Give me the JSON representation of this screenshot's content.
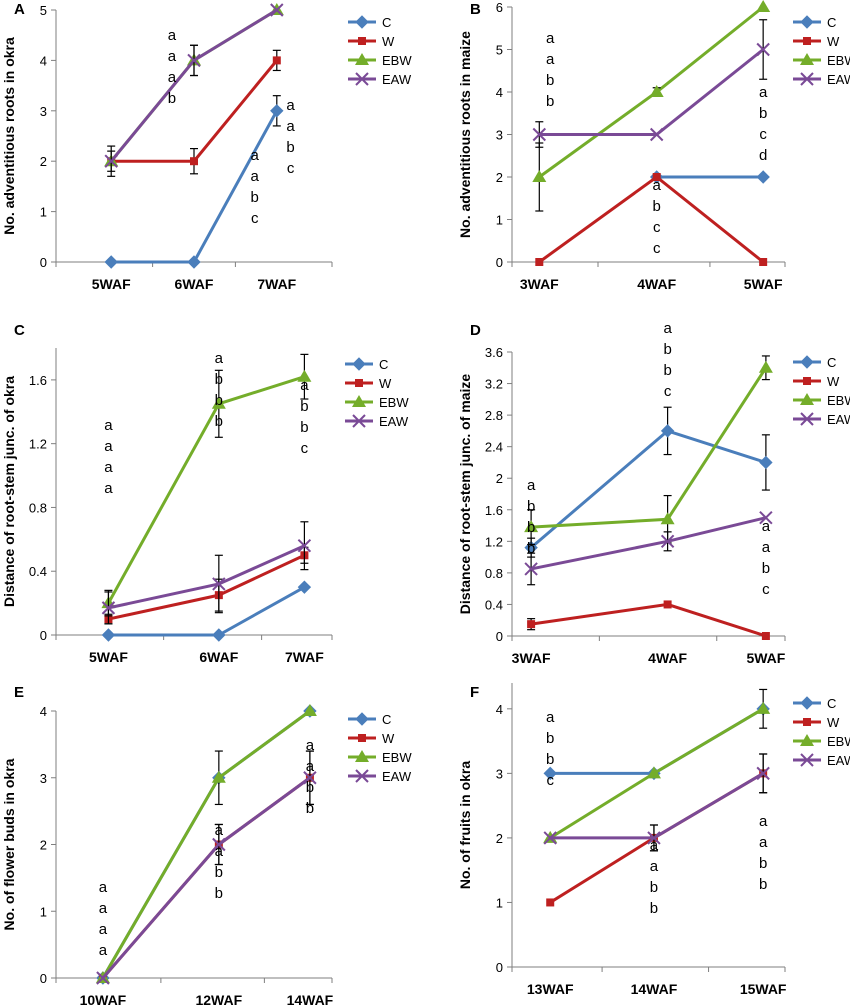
{
  "series_style": {
    "C": {
      "color": "#4a7ebb",
      "marker": "diamond"
    },
    "W": {
      "color": "#be2020",
      "marker": "square"
    },
    "EBW": {
      "color": "#74ad2a",
      "marker": "triangle"
    },
    "EAW": {
      "color": "#7a4a96",
      "marker": "x"
    }
  },
  "chart_data": [
    {
      "panel": "A",
      "type": "line",
      "ylabel": "No. adventitious roots in okra",
      "categories": [
        "5WAF",
        "6WAF",
        "7WAF"
      ],
      "ylim": [
        0,
        5
      ],
      "yticks": [
        0,
        1,
        2,
        3,
        4,
        5
      ],
      "ytick_labels": [
        "0",
        "1",
        "2",
        "3",
        "4",
        "5"
      ],
      "series": [
        {
          "name": "C",
          "values": [
            0,
            0,
            3
          ],
          "err": [
            0,
            0,
            0.3
          ]
        },
        {
          "name": "W",
          "values": [
            2,
            2,
            4
          ],
          "err": [
            0,
            0.25,
            0.2
          ]
        },
        {
          "name": "EBW",
          "values": [
            2,
            4,
            5
          ],
          "err": [
            0.3,
            0.3,
            0
          ]
        },
        {
          "name": "EAW",
          "values": [
            2,
            4,
            5
          ],
          "err": [
            0.2,
            0.3,
            0
          ]
        }
      ],
      "letters": [
        [
          "a",
          "a",
          "a",
          "b"
        ],
        [
          "a",
          "a",
          "b",
          "c"
        ],
        [
          "a",
          "a",
          "b",
          "c"
        ]
      ]
    },
    {
      "panel": "B",
      "type": "line",
      "ylabel": "No. adventitious roots in maize",
      "categories": [
        "3WAF",
        "4WAF",
        "5WAF"
      ],
      "ylim": [
        0,
        6
      ],
      "yticks": [
        0,
        1,
        2,
        3,
        4,
        5,
        6
      ],
      "ytick_labels": [
        "0",
        "1",
        "2",
        "3",
        "4",
        "5",
        "6"
      ],
      "series": [
        {
          "name": "C",
          "values": [
            null,
            2,
            2
          ],
          "err": [
            0,
            0,
            0
          ]
        },
        {
          "name": "W",
          "values": [
            0,
            2,
            0
          ],
          "err": [
            0,
            0,
            0
          ]
        },
        {
          "name": "EBW",
          "values": [
            2,
            4,
            6
          ],
          "err": [
            0.8,
            0.1,
            0
          ]
        },
        {
          "name": "EAW",
          "values": [
            3,
            3,
            5
          ],
          "err": [
            0.3,
            0,
            0.7
          ]
        }
      ],
      "letters": [
        [
          "a",
          "a",
          "b",
          "b"
        ],
        [
          "a",
          "b",
          "c",
          "c"
        ],
        [
          "a",
          "b",
          "c",
          "d"
        ]
      ]
    },
    {
      "panel": "C",
      "type": "line",
      "ylabel": "Distance of root-stem junc. of okra",
      "categories": [
        "5WAF",
        "6WAF",
        "7WAF"
      ],
      "ylim": [
        0,
        1.8
      ],
      "yticks": [
        0,
        0.4,
        0.8,
        1.2,
        1.6
      ],
      "ytick_labels": [
        "0",
        "0.4",
        "0.8",
        "1.2",
        "1.6"
      ],
      "series": [
        {
          "name": "C",
          "values": [
            0,
            0,
            0.3
          ],
          "err": [
            0,
            0,
            0
          ]
        },
        {
          "name": "W",
          "values": [
            0.1,
            0.25,
            0.5
          ],
          "err": [
            0.03,
            0.1,
            0.05
          ]
        },
        {
          "name": "EBW",
          "values": [
            0.2,
            1.45,
            1.62
          ],
          "err": [
            0.08,
            0.21,
            0.14
          ]
        },
        {
          "name": "EAW",
          "values": [
            0.17,
            0.32,
            0.56
          ],
          "err": [
            0.1,
            0.18,
            0.15
          ]
        }
      ],
      "letters": [
        [
          "a",
          "a",
          "a",
          "a"
        ],
        [
          "a",
          "b",
          "b",
          "b"
        ],
        [
          "a",
          "b",
          "b",
          "c"
        ]
      ]
    },
    {
      "panel": "D",
      "type": "line",
      "ylabel": "Distance of root-stem junc. of maize",
      "categories": [
        "3WAF",
        "4WAF",
        "5WAF"
      ],
      "ylim": [
        0,
        3.6
      ],
      "yticks": [
        0,
        0.4,
        0.8,
        1.2,
        1.6,
        2,
        2.4,
        2.8,
        3.2,
        3.6
      ],
      "ytick_labels": [
        "0",
        "0.4",
        "0.8",
        "1.2",
        "1.6",
        "2",
        "2.4",
        "2.8",
        "3.2",
        "3.6"
      ],
      "series": [
        {
          "name": "C",
          "values": [
            1.12,
            2.6,
            2.2
          ],
          "err": [
            0.12,
            0.3,
            0.35
          ]
        },
        {
          "name": "W",
          "values": [
            0.15,
            0.4,
            0
          ],
          "err": [
            0.07,
            0,
            0
          ]
        },
        {
          "name": "EBW",
          "values": [
            1.38,
            1.48,
            3.4
          ],
          "err": [
            0.22,
            0.3,
            0.15
          ]
        },
        {
          "name": "EAW",
          "values": [
            0.85,
            1.2,
            1.5
          ],
          "err": [
            0.2,
            0.12,
            0
          ]
        }
      ],
      "letters": [
        [
          "a",
          "b",
          "b",
          "b"
        ],
        [
          "a",
          "b",
          "b",
          "c"
        ],
        [
          "a",
          "a",
          "b",
          "c"
        ]
      ]
    },
    {
      "panel": "E",
      "type": "line",
      "ylabel": "No. of flower buds in okra",
      "categories": [
        "10WAF",
        "12WAF",
        "14WAF"
      ],
      "ylim": [
        0,
        4
      ],
      "yticks": [
        0,
        1,
        2,
        3,
        4
      ],
      "ytick_labels": [
        "0",
        "1",
        "2",
        "3",
        "4"
      ],
      "series": [
        {
          "name": "C",
          "values": [
            0,
            3,
            4
          ],
          "err": [
            0,
            0,
            0
          ]
        },
        {
          "name": "W",
          "values": [
            0,
            2,
            3
          ],
          "err": [
            0,
            0.3,
            0.4
          ]
        },
        {
          "name": "EBW",
          "values": [
            0,
            3,
            4
          ],
          "err": [
            0,
            0.4,
            0
          ]
        },
        {
          "name": "EAW",
          "values": [
            0,
            2,
            3
          ],
          "err": [
            0,
            0.3,
            0.4
          ]
        }
      ],
      "letters": [
        [
          "a",
          "a",
          "a",
          "a"
        ],
        [
          "a",
          "a",
          "b",
          "b"
        ],
        [
          "a",
          "a",
          "b",
          "b"
        ]
      ]
    },
    {
      "panel": "F",
      "type": "line",
      "ylabel": "No. of fruits in okra",
      "categories": [
        "13WAF",
        "14WAF",
        "15WAF"
      ],
      "ylim": [
        0,
        4.4
      ],
      "yticks": [
        0,
        1,
        2,
        3,
        4
      ],
      "ytick_labels": [
        "0",
        "1",
        "2",
        "3",
        "4"
      ],
      "series": [
        {
          "name": "C",
          "values": [
            3,
            3,
            4
          ],
          "err": [
            0,
            0,
            0
          ]
        },
        {
          "name": "W",
          "values": [
            1,
            2,
            3
          ],
          "err": [
            0,
            0.2,
            0.3
          ]
        },
        {
          "name": "EBW",
          "values": [
            2,
            3,
            4
          ],
          "err": [
            0,
            0,
            0.3
          ]
        },
        {
          "name": "EAW",
          "values": [
            2,
            2,
            3
          ],
          "err": [
            0,
            0.2,
            0.3
          ]
        }
      ],
      "letters": [
        [
          "a",
          "b",
          "b",
          "c"
        ],
        [
          "a",
          "a",
          "b",
          "b"
        ],
        [
          "a",
          "a",
          "b",
          "b"
        ]
      ]
    }
  ]
}
